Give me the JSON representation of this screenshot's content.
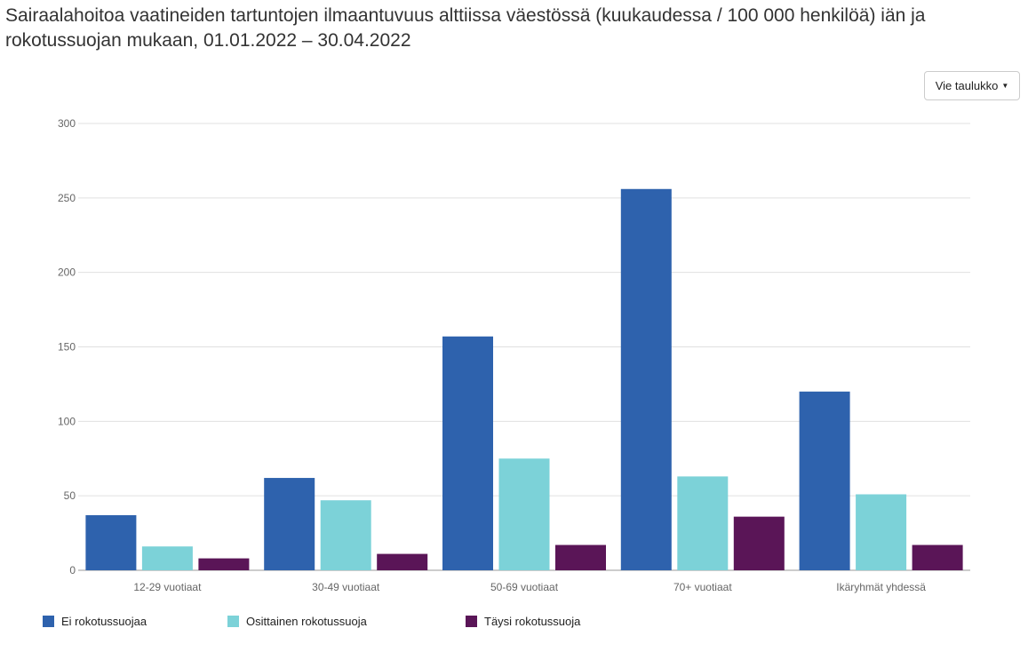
{
  "title": "Sairaalahoitoa vaatineiden tartuntojen ilmaantuvuus alttiissa väestössä (kuukaudessa / 100 000 henkilöä) iän ja rokotussuojan mukaan, 01.01.2022 – 30.04.2022",
  "export_button": {
    "label": "Vie taulukko",
    "icon": "caret-down-icon"
  },
  "chart_data": {
    "type": "bar",
    "categories": [
      "12-29 vuotiaat",
      "30-49 vuotiaat",
      "50-69 vuotiaat",
      "70+ vuotiaat",
      "Ikäryhmät yhdessä"
    ],
    "series": [
      {
        "name": "Ei rokotussuojaa",
        "color": "#2e62ad",
        "values": [
          37,
          62,
          157,
          256,
          120
        ]
      },
      {
        "name": "Osittainen rokotussuoja",
        "color": "#7cd2d8",
        "values": [
          16,
          47,
          75,
          63,
          51
        ]
      },
      {
        "name": "Täysi rokotussuoja",
        "color": "#5a1557",
        "values": [
          8,
          11,
          17,
          36,
          17
        ]
      }
    ],
    "ylim": [
      0,
      300
    ],
    "yticks": [
      0,
      50,
      100,
      150,
      200,
      250,
      300
    ],
    "grid": true,
    "legend": "bottom-left"
  }
}
